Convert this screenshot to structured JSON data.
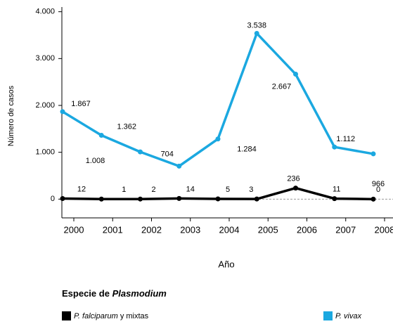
{
  "chart_data": {
    "type": "line",
    "x_label": "Año",
    "y_label": "Número de casos",
    "categories": [
      "2000",
      "2001",
      "2002",
      "2003",
      "2004",
      "2005",
      "2006",
      "2007",
      "2008"
    ],
    "series": [
      {
        "name": "P. falciparum y mixtas",
        "color": "#000000",
        "values": [
          12,
          1,
          2,
          14,
          5,
          3,
          236,
          11,
          0
        ]
      },
      {
        "name": "P. vivax",
        "color": "#1ba8e0",
        "values": [
          1867,
          1362,
          1008,
          704,
          1284,
          3538,
          2667,
          1112,
          966
        ],
        "value_labels": [
          "1.867",
          "1.362",
          "1.008",
          "704",
          "1.284",
          "3.538",
          "2.667",
          "1.112",
          "966"
        ]
      }
    ],
    "ylim": [
      -400,
      4100
    ],
    "yticks": [
      0,
      {
        "value": 1000,
        "label": "1.000"
      },
      {
        "value": 2000,
        "label": "2.000"
      },
      {
        "value": 3000,
        "label": "3.000"
      },
      {
        "value": 4000,
        "label": "4.000"
      }
    ],
    "legend_title": [
      "Especie de",
      "Plasmodium"
    ]
  }
}
